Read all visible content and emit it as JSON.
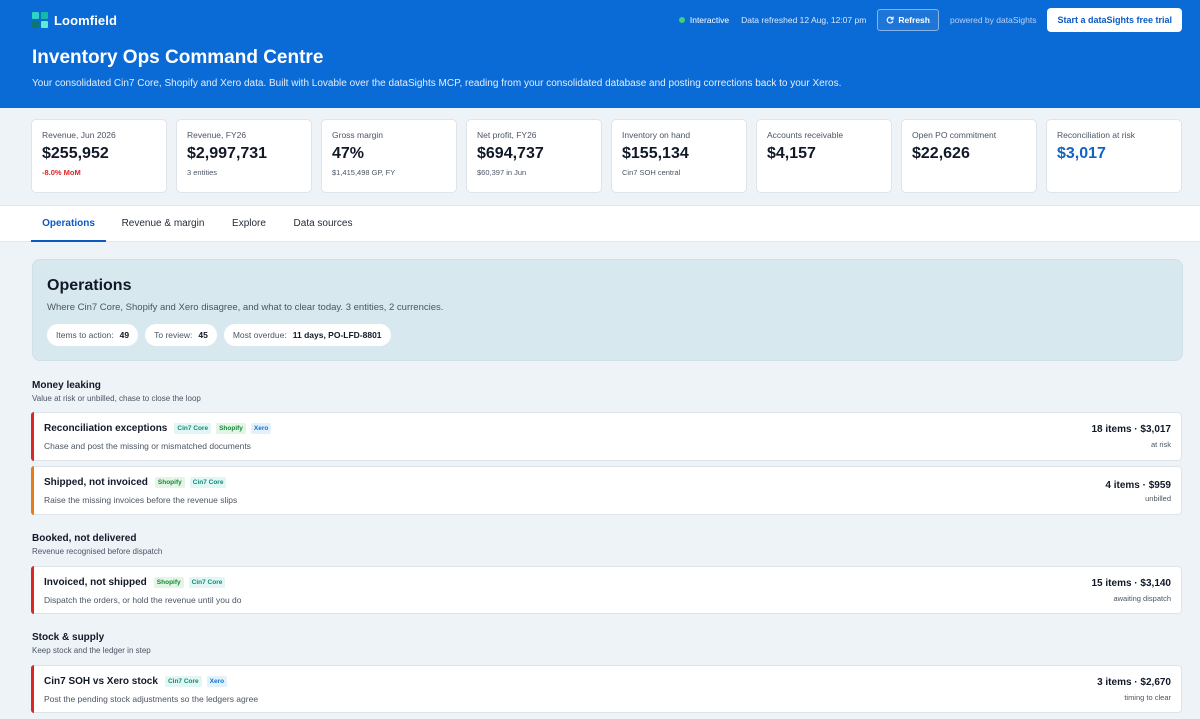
{
  "app": {
    "name": "Loomfield"
  },
  "topbar": {
    "status": "Interactive",
    "refreshed": "Data refreshed 12 Aug, 12:07 pm",
    "refresh_label": "Refresh",
    "powered_by": "powered by dataSights",
    "trial_label": "Start a dataSights free trial"
  },
  "page": {
    "title": "Inventory Ops Command Centre",
    "subtitle": "Your consolidated Cin7 Core, Shopify and Xero data. Built with Lovable over the dataSights MCP, reading from your consolidated database and posting corrections back to your Xeros."
  },
  "kpis": [
    {
      "label": "Revenue, Jun 2026",
      "value": "$255,952",
      "sub": "-8.0% MoM"
    },
    {
      "label": "Revenue, FY26",
      "value": "$2,997,731",
      "sub": "3 entities"
    },
    {
      "label": "Gross margin",
      "value": "47%",
      "sub": "$1,415,498 GP, FY"
    },
    {
      "label": "Net profit, FY26",
      "value": "$694,737",
      "sub": "$60,397 in Jun"
    },
    {
      "label": "Inventory on hand",
      "value": "$155,134",
      "sub": "Cin7 SOH central"
    },
    {
      "label": "Accounts receivable",
      "value": "$4,157",
      "sub": ""
    },
    {
      "label": "Open PO commitment",
      "value": "$22,626",
      "sub": ""
    },
    {
      "label": "Reconciliation at risk",
      "value": "$3,017",
      "sub": ""
    }
  ],
  "tabs": [
    "Operations",
    "Revenue & margin",
    "Explore",
    "Data sources"
  ],
  "ops": {
    "title": "Operations",
    "desc": "Where Cin7 Core, Shopify and Xero disagree, and what to clear today. 3 entities, 2 currencies.",
    "chips": [
      {
        "label": "Items to action:",
        "value": "49"
      },
      {
        "label": "To review:",
        "value": "45"
      },
      {
        "label": "Most overdue:",
        "value": "11 days, PO-LFD-8801"
      }
    ]
  },
  "sections": [
    {
      "title": "Money leaking",
      "sub": "Value at risk or unbilled, chase to close the loop",
      "items": [
        {
          "name": "Reconciliation exceptions",
          "tags": [
            "Cin7 Core",
            "Shopify",
            "Xero"
          ],
          "desc": "Chase and post the missing or mismatched documents",
          "amount": "18 items · $3,017",
          "note": "at risk",
          "color": "#dc2626"
        },
        {
          "name": "Shipped, not invoiced",
          "tags": [
            "Shopify",
            "Cin7 Core"
          ],
          "desc": "Raise the missing invoices before the revenue slips",
          "amount": "4 items · $959",
          "note": "unbilled",
          "color": "#ea7a17"
        }
      ]
    },
    {
      "title": "Booked, not delivered",
      "sub": "Revenue recognised before dispatch",
      "items": [
        {
          "name": "Invoiced, not shipped",
          "tags": [
            "Shopify",
            "Cin7 Core"
          ],
          "desc": "Dispatch the orders, or hold the revenue until you do",
          "amount": "15 items · $3,140",
          "note": "awaiting dispatch",
          "color": "#dc2626"
        }
      ]
    },
    {
      "title": "Stock & supply",
      "sub": "Keep stock and the ledger in step",
      "items": [
        {
          "name": "Cin7 SOH vs Xero stock",
          "tags": [
            "Cin7 Core",
            "Xero"
          ],
          "desc": "Post the pending stock adjustments so the ledgers agree",
          "amount": "3 items · $2,670",
          "note": "timing to clear",
          "color": "#dc2626"
        }
      ]
    }
  ],
  "colors": {
    "header": "#0b6bd6",
    "accent": "#0b5ac2",
    "negative": "#dc2626",
    "warning": "#ea7a17",
    "logo": [
      "#2dd4bf",
      "#14b8a6",
      "#0f766e",
      "#5eead4"
    ]
  }
}
